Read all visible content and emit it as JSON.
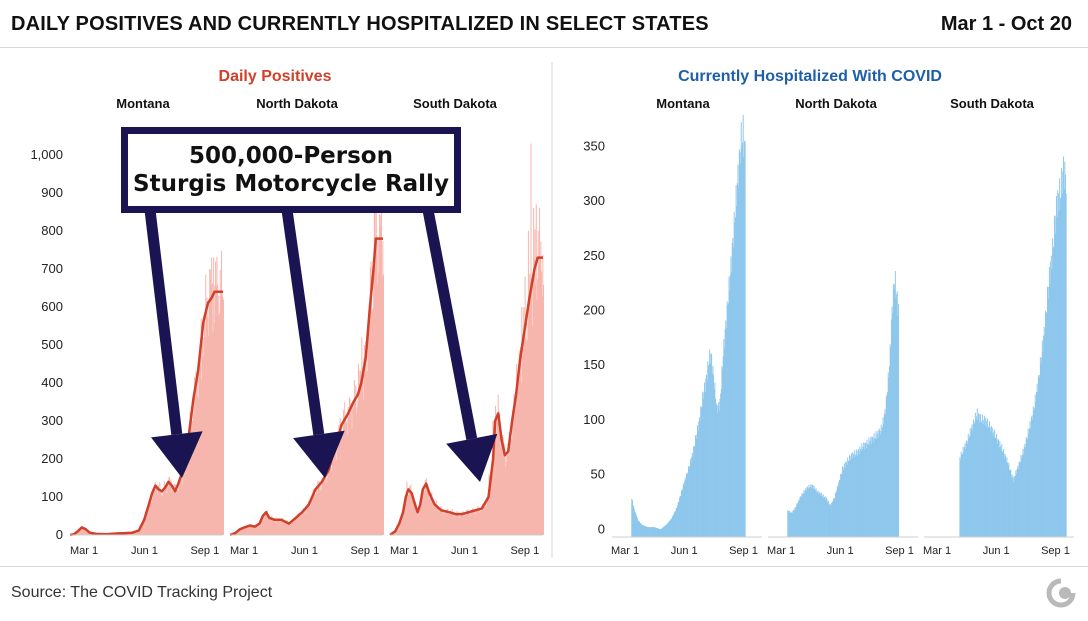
{
  "header": {
    "title": "DAILY POSITIVES AND CURRENTLY HOSPITALIZED IN SELECT STATES",
    "date_range": "Mar 1 - Oct 20"
  },
  "annotation": {
    "line1": "500,000-Person",
    "line2": "Sturgis Motorcycle Rally"
  },
  "footer": {
    "source": "Source: The COVID Tracking Project",
    "logo_icon": "covid-tracking-project-logo-icon"
  },
  "colors": {
    "positives_bar": "#f6b6ad",
    "positives_line": "#d0402a",
    "positives_title": "#d0402a",
    "hospitalized_bar": "#8ec7ec",
    "hospitalized_title": "#1f5ea8",
    "annotation_navy": "#1b1452"
  },
  "chart_data": [
    {
      "type": "bar",
      "title": "Daily Positives",
      "ylim": [
        0,
        1050
      ],
      "yticks": [
        0,
        100,
        200,
        300,
        400,
        500,
        600,
        700,
        800,
        900,
        1000
      ],
      "ytick_labels": [
        "0",
        "100",
        "200",
        "300",
        "400",
        "500",
        "600",
        "700",
        "800",
        "900",
        "1,000"
      ],
      "xtick_labels": [
        "Mar 1",
        "Jun 1",
        "Sep 1"
      ],
      "x_range": [
        "Mar 1",
        "Oct 20"
      ],
      "grid": false,
      "panels": [
        {
          "name": "Montana",
          "points": [
            [
              0,
              0
            ],
            [
              6,
              2
            ],
            [
              12,
              10
            ],
            [
              18,
              20
            ],
            [
              24,
              15
            ],
            [
              30,
              6
            ],
            [
              40,
              3
            ],
            [
              55,
              2
            ],
            [
              70,
              4
            ],
            [
              85,
              5
            ],
            [
              95,
              6
            ],
            [
              105,
              12
            ],
            [
              113,
              40
            ],
            [
              120,
              80
            ],
            [
              125,
              110
            ],
            [
              130,
              130
            ],
            [
              135,
              120
            ],
            [
              140,
              115
            ],
            [
              145,
              125
            ],
            [
              150,
              140
            ],
            [
              155,
              130
            ],
            [
              160,
              115
            ],
            [
              165,
              135
            ],
            [
              172,
              170
            ],
            [
              180,
              250
            ],
            [
              188,
              360
            ],
            [
              195,
              430
            ],
            [
              203,
              560
            ],
            [
              210,
              610
            ],
            [
              216,
              625
            ],
            [
              220,
              640
            ],
            [
              233,
              640
            ]
          ],
          "spikes": [
            [
              170,
              180
            ],
            [
              200,
              410
            ],
            [
              205,
              520
            ],
            [
              212,
              700
            ],
            [
              215,
              730
            ],
            [
              218,
              730
            ],
            [
              221,
              720
            ],
            [
              224,
              660
            ]
          ]
        },
        {
          "name": "North Dakota",
          "points": [
            [
              0,
              0
            ],
            [
              8,
              5
            ],
            [
              15,
              15
            ],
            [
              22,
              20
            ],
            [
              30,
              25
            ],
            [
              38,
              22
            ],
            [
              45,
              30
            ],
            [
              50,
              50
            ],
            [
              55,
              60
            ],
            [
              60,
              45
            ],
            [
              68,
              40
            ],
            [
              78,
              40
            ],
            [
              90,
              30
            ],
            [
              100,
              45
            ],
            [
              110,
              60
            ],
            [
              120,
              80
            ],
            [
              130,
              120
            ],
            [
              140,
              140
            ],
            [
              150,
              170
            ],
            [
              160,
              230
            ],
            [
              170,
              290
            ],
            [
              180,
              320
            ],
            [
              188,
              350
            ],
            [
              195,
              370
            ],
            [
              200,
              400
            ],
            [
              207,
              470
            ],
            [
              213,
              600
            ],
            [
              218,
              690
            ],
            [
              222,
              780
            ],
            [
              233,
              780
            ]
          ],
          "spikes": [
            [
              195,
              450
            ],
            [
              200,
              520
            ],
            [
              204,
              500
            ],
            [
              210,
              560
            ],
            [
              214,
              720
            ],
            [
              219,
              900
            ],
            [
              222,
              1030
            ]
          ]
        },
        {
          "name": "South Dakota",
          "points": [
            [
              0,
              0
            ],
            [
              8,
              10
            ],
            [
              14,
              30
            ],
            [
              20,
              60
            ],
            [
              24,
              100
            ],
            [
              28,
              120
            ],
            [
              33,
              110
            ],
            [
              38,
              80
            ],
            [
              42,
              60
            ],
            [
              46,
              80
            ],
            [
              50,
              120
            ],
            [
              55,
              135
            ],
            [
              60,
              110
            ],
            [
              68,
              80
            ],
            [
              78,
              65
            ],
            [
              90,
              60
            ],
            [
              100,
              55
            ],
            [
              110,
              55
            ],
            [
              120,
              60
            ],
            [
              130,
              65
            ],
            [
              140,
              70
            ],
            [
              150,
              100
            ],
            [
              157,
              200
            ],
            [
              160,
              300
            ],
            [
              165,
              320
            ],
            [
              170,
              250
            ],
            [
              175,
              210
            ],
            [
              180,
              220
            ],
            [
              186,
              300
            ],
            [
              192,
              370
            ],
            [
              198,
              460
            ],
            [
              205,
              540
            ],
            [
              212,
              620
            ],
            [
              220,
              700
            ],
            [
              225,
              730
            ],
            [
              233,
              730
            ]
          ],
          "spikes": [
            [
              25,
              140
            ],
            [
              55,
              150
            ],
            [
              150,
              160
            ],
            [
              156,
              300
            ],
            [
              160,
              340
            ],
            [
              192,
              450
            ],
            [
              200,
              600
            ],
            [
              205,
              680
            ],
            [
              210,
              800
            ],
            [
              214,
              1030
            ],
            [
              218,
              860
            ],
            [
              222,
              870
            ],
            [
              225,
              800
            ]
          ]
        }
      ]
    },
    {
      "type": "bar",
      "title": "Currently Hospitalized With COVID",
      "ylim": [
        -7,
        365
      ],
      "yticks": [
        0,
        50,
        100,
        150,
        200,
        250,
        300,
        350
      ],
      "ytick_labels": [
        "0",
        "50",
        "100",
        "150",
        "200",
        "250",
        "300",
        "350"
      ],
      "xtick_labels": [
        "Mar 1",
        "Jun 1",
        "Sep 1",
        "Mar 1",
        "Jun 1",
        "Sep 1"
      ],
      "x_range": [
        "Mar 1",
        "Oct 20"
      ],
      "grid": false,
      "panels": [
        {
          "name": "Montana",
          "start_day": 30,
          "points": [
            [
              30,
              28
            ],
            [
              34,
              18
            ],
            [
              40,
              8
            ],
            [
              46,
              4
            ],
            [
              55,
              2
            ],
            [
              65,
              2
            ],
            [
              75,
              0
            ],
            [
              85,
              5
            ],
            [
              92,
              10
            ],
            [
              100,
              20
            ],
            [
              110,
              40
            ],
            [
              118,
              55
            ],
            [
              125,
              70
            ],
            [
              130,
              85
            ],
            [
              135,
              100
            ],
            [
              140,
              120
            ],
            [
              145,
              135
            ],
            [
              150,
              155
            ],
            [
              153,
              160
            ],
            [
              157,
              140
            ],
            [
              162,
              110
            ],
            [
              167,
              115
            ],
            [
              172,
              160
            ],
            [
              178,
              200
            ],
            [
              184,
              240
            ],
            [
              190,
              285
            ],
            [
              196,
              330
            ],
            [
              200,
              355
            ],
            [
              203,
              362
            ],
            [
              206,
              345
            ]
          ]
        },
        {
          "name": "North Dakota",
          "start_day": 30,
          "points": [
            [
              30,
              17
            ],
            [
              36,
              15
            ],
            [
              42,
              20
            ],
            [
              50,
              30
            ],
            [
              60,
              38
            ],
            [
              68,
              40
            ],
            [
              75,
              35
            ],
            [
              82,
              32
            ],
            [
              90,
              28
            ],
            [
              96,
              22
            ],
            [
              102,
              28
            ],
            [
              108,
              40
            ],
            [
              115,
              55
            ],
            [
              122,
              62
            ],
            [
              130,
              68
            ],
            [
              138,
              70
            ],
            [
              145,
              75
            ],
            [
              152,
              78
            ],
            [
              160,
              82
            ],
            [
              168,
              86
            ],
            [
              176,
              92
            ],
            [
              182,
              110
            ],
            [
              188,
              150
            ],
            [
              192,
              200
            ],
            [
              196,
              230
            ],
            [
              199,
              215
            ],
            [
              202,
              200
            ]
          ]
        },
        {
          "name": "South Dakota",
          "start_day": 55,
          "points": [
            [
              55,
              65
            ],
            [
              60,
              72
            ],
            [
              66,
              80
            ],
            [
              72,
              90
            ],
            [
              78,
              100
            ],
            [
              82,
              106
            ],
            [
              88,
              100
            ],
            [
              94,
              100
            ],
            [
              100,
              95
            ],
            [
              108,
              88
            ],
            [
              115,
              80
            ],
            [
              122,
              72
            ],
            [
              130,
              60
            ],
            [
              138,
              45
            ],
            [
              146,
              58
            ],
            [
              154,
              72
            ],
            [
              162,
              90
            ],
            [
              170,
              110
            ],
            [
              178,
              140
            ],
            [
              186,
              180
            ],
            [
              194,
              230
            ],
            [
              200,
              260
            ],
            [
              206,
              300
            ],
            [
              212,
              310
            ],
            [
              216,
              330
            ],
            [
              220,
              320
            ]
          ]
        }
      ]
    }
  ]
}
